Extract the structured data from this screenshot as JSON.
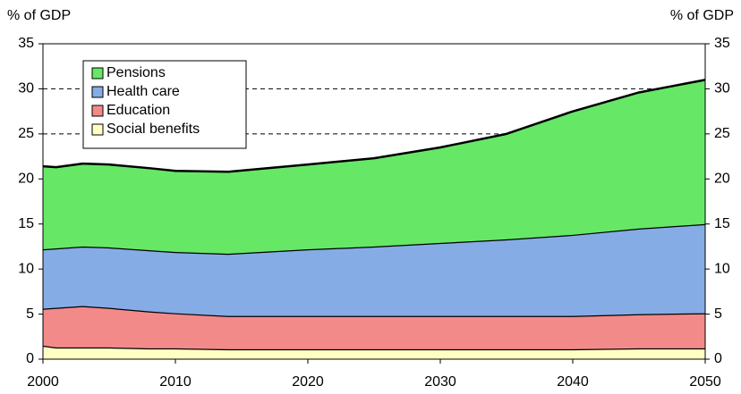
{
  "chart_data": {
    "type": "stacked-area",
    "ylabel": "% of GDP",
    "y2label": "% of GDP",
    "x": [
      2000,
      2001,
      2003,
      2005,
      2008,
      2010,
      2014,
      2020,
      2025,
      2030,
      2035,
      2040,
      2045,
      2050
    ],
    "series": [
      {
        "name": "Social benefits",
        "color": "#ffffc4",
        "values": [
          1.5,
          1.3,
          1.3,
          1.3,
          1.2,
          1.2,
          1.1,
          1.1,
          1.1,
          1.1,
          1.1,
          1.1,
          1.2,
          1.2
        ]
      },
      {
        "name": "Education",
        "color": "#f28a8a",
        "values": [
          4.1,
          4.4,
          4.6,
          4.4,
          4.1,
          3.9,
          3.7,
          3.7,
          3.7,
          3.7,
          3.7,
          3.7,
          3.8,
          3.9
        ]
      },
      {
        "name": "Health care",
        "color": "#86ace6",
        "values": [
          6.6,
          6.6,
          6.6,
          6.7,
          6.8,
          6.8,
          6.9,
          7.4,
          7.7,
          8.1,
          8.5,
          9.0,
          9.5,
          9.9
        ]
      },
      {
        "name": "Pensions",
        "color": "#66e866",
        "values": [
          9.2,
          9.0,
          9.2,
          9.2,
          9.1,
          9.0,
          9.1,
          9.4,
          9.8,
          10.6,
          11.7,
          13.7,
          15.1,
          16.0
        ]
      }
    ],
    "xlim": [
      2000,
      2050
    ],
    "xticks": [
      2000,
      2010,
      2020,
      2030,
      2040,
      2050
    ],
    "ylim": [
      0,
      35
    ],
    "yticks": [
      0,
      5,
      10,
      15,
      20,
      25,
      30,
      35
    ],
    "y2lim": [
      0,
      35
    ],
    "y2ticks": [
      0,
      5,
      10,
      15,
      20,
      25,
      30,
      35
    ],
    "grid": true,
    "legend": "upper left"
  }
}
